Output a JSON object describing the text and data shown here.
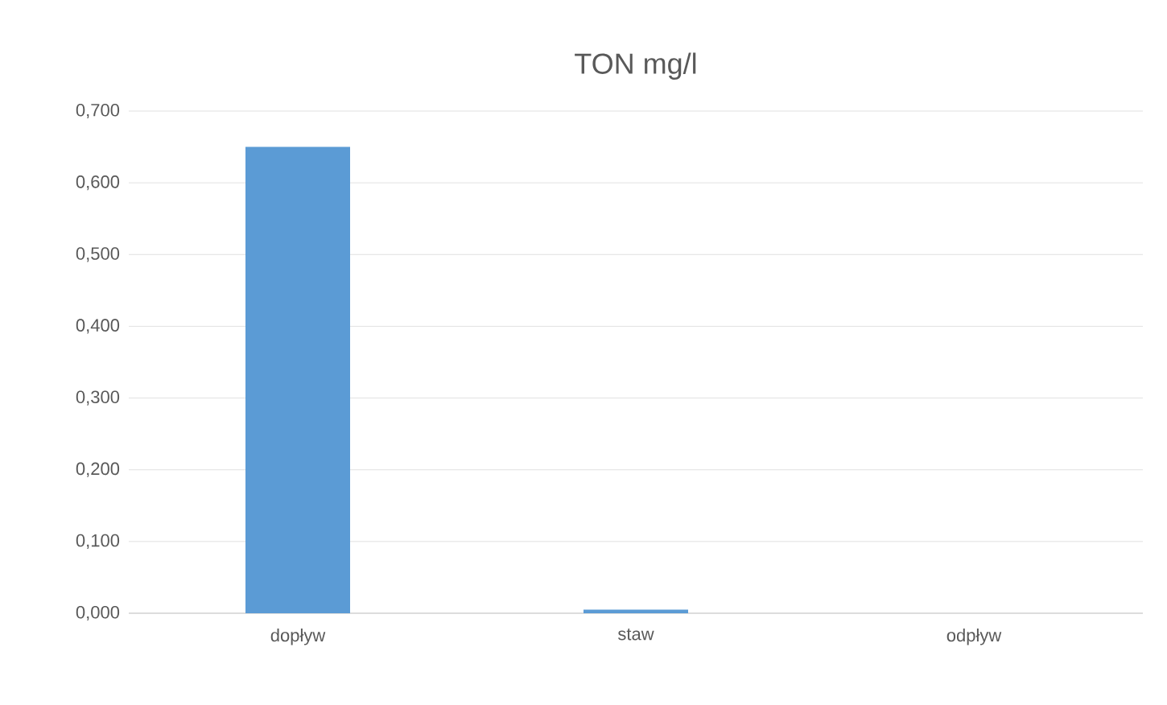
{
  "chart_data": {
    "type": "bar",
    "title": "TON mg/l",
    "categories": [
      "dopływ",
      "staw",
      "odpływ"
    ],
    "values": [
      0.65,
      0.005,
      0
    ],
    "color": "#5b9bd5",
    "ylim": [
      0,
      0.7
    ],
    "yticks": [
      {
        "value": 0,
        "label": "0,000"
      },
      {
        "value": 0.1,
        "label": "0,100"
      },
      {
        "value": 0.2,
        "label": "0,200"
      },
      {
        "value": 0.3,
        "label": "0,300"
      },
      {
        "value": 0.4,
        "label": "0,400"
      },
      {
        "value": 0.5,
        "label": "0,500"
      },
      {
        "value": 0.6,
        "label": "0,600"
      },
      {
        "value": 0.7,
        "label": "0,700"
      }
    ],
    "grid": "y"
  }
}
